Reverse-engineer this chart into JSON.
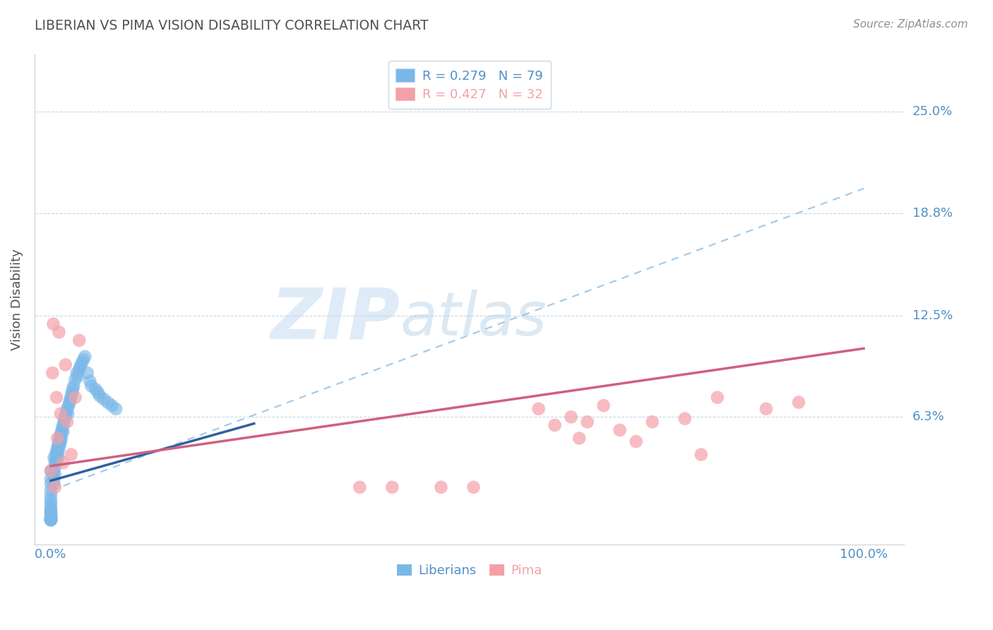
{
  "title": "LIBERIAN VS PIMA VISION DISABILITY CORRELATION CHART",
  "source": "Source: ZipAtlas.com",
  "ylabel": "Vision Disability",
  "ytick_labels": [
    "25.0%",
    "18.8%",
    "12.5%",
    "6.3%"
  ],
  "ytick_values": [
    0.25,
    0.188,
    0.125,
    0.063
  ],
  "xlim": [
    -0.02,
    1.05
  ],
  "ylim": [
    -0.015,
    0.285
  ],
  "watermark_zip": "ZIP",
  "watermark_atlas": "atlas",
  "legend_entries": [
    {
      "label": "R = 0.279   N = 79",
      "color": "#7ab8e8"
    },
    {
      "label": "R = 0.427   N = 32",
      "color": "#f4a0a8"
    }
  ],
  "blue_scatter_color": "#7ab8e8",
  "pink_scatter_color": "#f4a0a8",
  "blue_line_color": "#3060a0",
  "pink_line_color": "#d06080",
  "dashed_line_color": "#a0c8e8",
  "grid_color": "#c8d8e8",
  "title_color": "#505050",
  "source_color": "#909090",
  "axis_label_color": "#5090c8",
  "tick_label_color": "#5090c8",
  "liberians_x": [
    0.0,
    0.0,
    0.0,
    0.0,
    0.0,
    0.0,
    0.0,
    0.0,
    0.0,
    0.0,
    0.0,
    0.0,
    0.0,
    0.0,
    0.0,
    0.0,
    0.0,
    0.0,
    0.0,
    0.0,
    0.002,
    0.003,
    0.004,
    0.004,
    0.004,
    0.005,
    0.005,
    0.005,
    0.006,
    0.006,
    0.007,
    0.007,
    0.008,
    0.008,
    0.009,
    0.009,
    0.009,
    0.01,
    0.01,
    0.011,
    0.011,
    0.012,
    0.012,
    0.013,
    0.013,
    0.014,
    0.015,
    0.015,
    0.016,
    0.017,
    0.018,
    0.019,
    0.02,
    0.021,
    0.022,
    0.023,
    0.024,
    0.025,
    0.026,
    0.027,
    0.028,
    0.03,
    0.032,
    0.033,
    0.035,
    0.036,
    0.038,
    0.04,
    0.042,
    0.045,
    0.048,
    0.05,
    0.055,
    0.058,
    0.06,
    0.065,
    0.07,
    0.075,
    0.08
  ],
  "liberians_y": [
    0.03,
    0.025,
    0.022,
    0.018,
    0.015,
    0.012,
    0.01,
    0.008,
    0.006,
    0.005,
    0.004,
    0.003,
    0.002,
    0.001,
    0.001,
    0.0,
    0.0,
    0.0,
    0.0,
    0.0,
    0.03,
    0.028,
    0.025,
    0.022,
    0.038,
    0.035,
    0.032,
    0.028,
    0.04,
    0.036,
    0.042,
    0.038,
    0.044,
    0.04,
    0.046,
    0.042,
    0.038,
    0.048,
    0.044,
    0.05,
    0.046,
    0.052,
    0.048,
    0.054,
    0.05,
    0.056,
    0.058,
    0.054,
    0.06,
    0.062,
    0.064,
    0.066,
    0.068,
    0.065,
    0.07,
    0.072,
    0.074,
    0.076,
    0.078,
    0.08,
    0.082,
    0.086,
    0.09,
    0.088,
    0.092,
    0.094,
    0.096,
    0.098,
    0.1,
    0.09,
    0.085,
    0.082,
    0.08,
    0.078,
    0.076,
    0.074,
    0.072,
    0.07,
    0.068
  ],
  "pima_x": [
    0.0,
    0.002,
    0.003,
    0.005,
    0.007,
    0.008,
    0.01,
    0.012,
    0.015,
    0.018,
    0.02,
    0.025,
    0.03,
    0.035,
    0.38,
    0.42,
    0.48,
    0.52,
    0.6,
    0.62,
    0.64,
    0.65,
    0.66,
    0.68,
    0.7,
    0.72,
    0.74,
    0.78,
    0.8,
    0.82,
    0.88,
    0.92
  ],
  "pima_y": [
    0.03,
    0.09,
    0.12,
    0.02,
    0.075,
    0.05,
    0.115,
    0.065,
    0.035,
    0.095,
    0.06,
    0.04,
    0.075,
    0.11,
    0.02,
    0.02,
    0.02,
    0.02,
    0.068,
    0.058,
    0.063,
    0.05,
    0.06,
    0.07,
    0.055,
    0.048,
    0.06,
    0.062,
    0.04,
    0.075,
    0.068,
    0.072
  ]
}
